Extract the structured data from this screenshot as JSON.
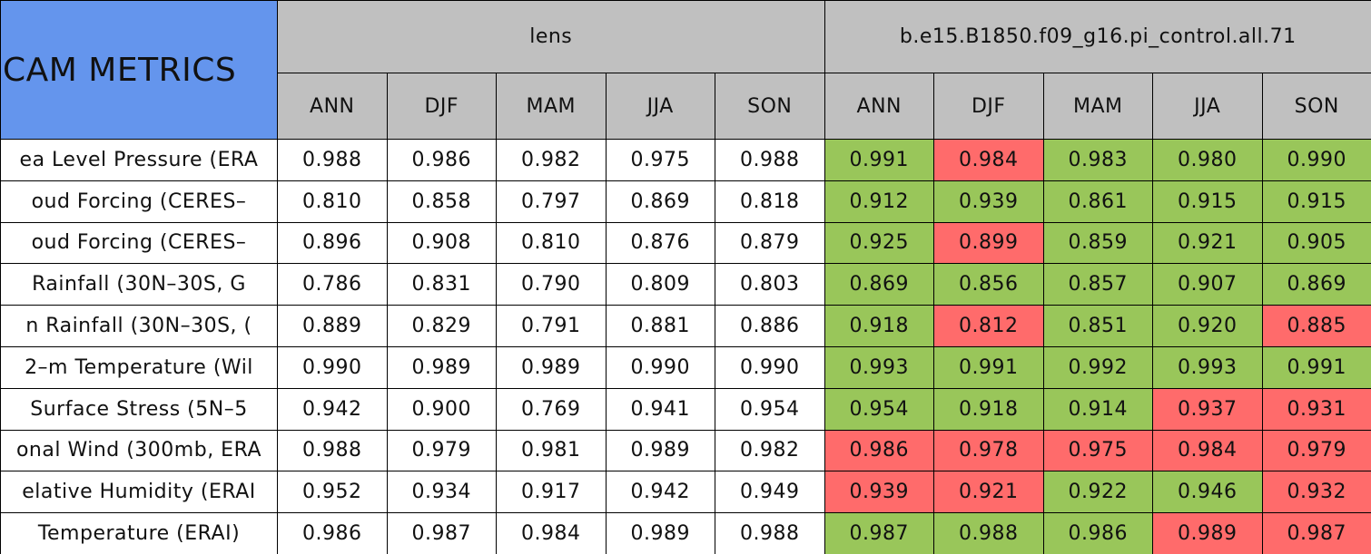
{
  "header": {
    "title": "CAM METRICS",
    "groups": [
      "lens",
      "b.e15.B1850.f09_g16.pi_control.all.71"
    ],
    "seasons": [
      "ANN",
      "DJF",
      "MAM",
      "JJA",
      "SON",
      "ANN",
      "DJF",
      "MAM",
      "JJA",
      "SON"
    ]
  },
  "table": {
    "rows": [
      {
        "label": "ea Level Pressure (ERA",
        "values": [
          "0.988",
          "0.986",
          "0.982",
          "0.975",
          "0.988",
          "0.991",
          "0.984",
          "0.983",
          "0.980",
          "0.990"
        ],
        "fills": [
          "#ffffff",
          "#ffffff",
          "#ffffff",
          "#ffffff",
          "#ffffff",
          "#99c65a",
          "#ff6b6b",
          "#99c65a",
          "#99c65a",
          "#99c65a"
        ]
      },
      {
        "label": "oud Forcing (CERES–",
        "values": [
          "0.810",
          "0.858",
          "0.797",
          "0.869",
          "0.818",
          "0.912",
          "0.939",
          "0.861",
          "0.915",
          "0.915"
        ],
        "fills": [
          "#ffffff",
          "#ffffff",
          "#ffffff",
          "#ffffff",
          "#ffffff",
          "#99c65a",
          "#99c65a",
          "#99c65a",
          "#99c65a",
          "#99c65a"
        ]
      },
      {
        "label": "oud Forcing (CERES–",
        "values": [
          "0.896",
          "0.908",
          "0.810",
          "0.876",
          "0.879",
          "0.925",
          "0.899",
          "0.859",
          "0.921",
          "0.905"
        ],
        "fills": [
          "#ffffff",
          "#ffffff",
          "#ffffff",
          "#ffffff",
          "#ffffff",
          "#99c65a",
          "#ff6b6b",
          "#99c65a",
          "#99c65a",
          "#99c65a"
        ]
      },
      {
        "label": "Rainfall (30N–30S, G",
        "values": [
          "0.786",
          "0.831",
          "0.790",
          "0.809",
          "0.803",
          "0.869",
          "0.856",
          "0.857",
          "0.907",
          "0.869"
        ],
        "fills": [
          "#ffffff",
          "#ffffff",
          "#ffffff",
          "#ffffff",
          "#ffffff",
          "#99c65a",
          "#99c65a",
          "#99c65a",
          "#99c65a",
          "#99c65a"
        ]
      },
      {
        "label": "n Rainfall (30N–30S, (",
        "values": [
          "0.889",
          "0.829",
          "0.791",
          "0.881",
          "0.886",
          "0.918",
          "0.812",
          "0.851",
          "0.920",
          "0.885"
        ],
        "fills": [
          "#ffffff",
          "#ffffff",
          "#ffffff",
          "#ffffff",
          "#ffffff",
          "#99c65a",
          "#ff6b6b",
          "#99c65a",
          "#99c65a",
          "#ff6b6b"
        ]
      },
      {
        "label": "2–m Temperature (Wil",
        "values": [
          "0.990",
          "0.989",
          "0.989",
          "0.990",
          "0.990",
          "0.993",
          "0.991",
          "0.992",
          "0.993",
          "0.991"
        ],
        "fills": [
          "#ffffff",
          "#ffffff",
          "#ffffff",
          "#ffffff",
          "#ffffff",
          "#99c65a",
          "#99c65a",
          "#99c65a",
          "#99c65a",
          "#99c65a"
        ]
      },
      {
        "label": "Surface Stress (5N–5",
        "values": [
          "0.942",
          "0.900",
          "0.769",
          "0.941",
          "0.954",
          "0.954",
          "0.918",
          "0.914",
          "0.937",
          "0.931"
        ],
        "fills": [
          "#ffffff",
          "#ffffff",
          "#ffffff",
          "#ffffff",
          "#ffffff",
          "#99c65a",
          "#99c65a",
          "#99c65a",
          "#ff6b6b",
          "#ff6b6b"
        ]
      },
      {
        "label": "onal Wind (300mb, ERA",
        "values": [
          "0.988",
          "0.979",
          "0.981",
          "0.989",
          "0.982",
          "0.986",
          "0.978",
          "0.975",
          "0.984",
          "0.979"
        ],
        "fills": [
          "#ffffff",
          "#ffffff",
          "#ffffff",
          "#ffffff",
          "#ffffff",
          "#ff6b6b",
          "#ff6b6b",
          "#ff6b6b",
          "#ff6b6b",
          "#ff6b6b"
        ]
      },
      {
        "label": "elative Humidity (ERAI",
        "values": [
          "0.952",
          "0.934",
          "0.917",
          "0.942",
          "0.949",
          "0.939",
          "0.921",
          "0.922",
          "0.946",
          "0.932"
        ],
        "fills": [
          "#ffffff",
          "#ffffff",
          "#ffffff",
          "#ffffff",
          "#ffffff",
          "#ff6b6b",
          "#ff6b6b",
          "#99c65a",
          "#99c65a",
          "#ff6b6b"
        ]
      },
      {
        "label": "Temperature (ERAI)",
        "values": [
          "0.986",
          "0.987",
          "0.984",
          "0.989",
          "0.988",
          "0.987",
          "0.988",
          "0.986",
          "0.989",
          "0.987"
        ],
        "fills": [
          "#ffffff",
          "#ffffff",
          "#ffffff",
          "#ffffff",
          "#ffffff",
          "#99c65a",
          "#99c65a",
          "#99c65a",
          "#ff6b6b",
          "#ff6b6b"
        ]
      }
    ]
  }
}
